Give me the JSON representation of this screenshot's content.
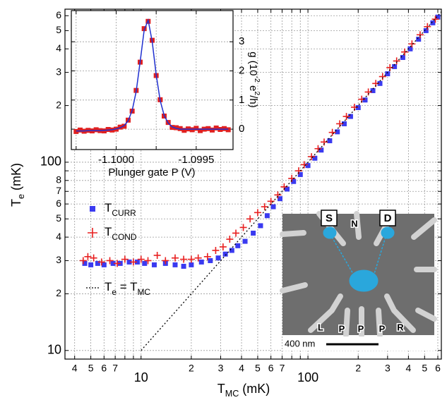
{
  "chart_data": [
    {
      "type": "scatter",
      "xscale": "log",
      "yscale": "log",
      "grid": true,
      "xlabel": [
        {
          "t": "T"
        },
        {
          "t": "MC",
          "s": "sub"
        },
        {
          "t": " (mK)"
        }
      ],
      "ylabel": [
        {
          "t": "T"
        },
        {
          "t": "e",
          "s": "sub"
        },
        {
          "t": " (mK)"
        }
      ],
      "xlim": [
        3.5,
        630
      ],
      "ylim": [
        9,
        650
      ],
      "xticks": [
        4,
        5,
        6,
        7,
        10,
        {
          "value": 20,
          "label": "2"
        },
        {
          "value": 30,
          "label": "3"
        },
        {
          "value": 40,
          "label": "4"
        },
        {
          "value": 50,
          "label": "5"
        },
        {
          "value": 60,
          "label": "6"
        },
        {
          "value": 70,
          "label": "7"
        },
        100,
        {
          "value": 200,
          "label": "2"
        },
        {
          "value": 300,
          "label": "3"
        },
        {
          "value": 400,
          "label": "4"
        },
        {
          "value": 500,
          "label": "5"
        },
        {
          "value": 600,
          "label": "6"
        }
      ],
      "x_unlabelled_ticks": [
        8,
        9,
        80,
        90
      ],
      "yticks": [
        10,
        {
          "value": 20,
          "label": "2"
        },
        {
          "value": 30,
          "label": "3"
        },
        {
          "value": 40,
          "label": "4"
        },
        {
          "value": 50,
          "label": "5"
        },
        {
          "value": 60,
          "label": "6"
        },
        {
          "value": 70,
          "label": "7"
        },
        {
          "value": 80,
          "label": "8"
        },
        100,
        {
          "value": 200,
          "label": "2"
        },
        {
          "value": 300,
          "label": "3"
        },
        {
          "value": 400,
          "label": "4"
        },
        {
          "value": 500,
          "label": "5"
        },
        {
          "value": 600,
          "label": "6"
        }
      ],
      "y_unlabelled_ticks": [
        90
      ],
      "series": [
        {
          "name": [
            {
              "t": "T"
            },
            {
              "t": "CURR",
              "s": "sub"
            }
          ],
          "marker": "square",
          "color": "#3a3af0",
          "x": [
            4.6,
            5,
            5.5,
            6,
            6.8,
            7.5,
            8.5,
            9.5,
            10.5,
            12,
            14,
            16,
            18,
            20,
            23,
            26,
            29,
            32,
            35,
            38,
            42,
            47,
            52,
            57,
            62,
            68,
            75,
            82,
            90,
            100,
            110,
            120,
            135,
            150,
            165,
            180,
            200,
            220,
            245,
            270,
            300,
            330,
            370,
            410,
            460,
            510,
            560,
            600
          ],
          "values": [
            29,
            28.5,
            29,
            28.5,
            29,
            29,
            29.5,
            29.5,
            29,
            28.5,
            29,
            28.5,
            28,
            28.5,
            29.5,
            30,
            31,
            32.5,
            34,
            36,
            38,
            42,
            46,
            52,
            58,
            64,
            72,
            79,
            86,
            96,
            105,
            116,
            130,
            145,
            160,
            175,
            195,
            214,
            240,
            262,
            295,
            322,
            360,
            400,
            450,
            500,
            550,
            590
          ]
        },
        {
          "name": [
            {
              "t": "T"
            },
            {
              "t": "COND",
              "s": "sub"
            }
          ],
          "marker": "plus",
          "color": "#e82020",
          "x": [
            4.5,
            4.8,
            5.2,
            5.8,
            6.5,
            7.2,
            8,
            9,
            10,
            11,
            12.5,
            14,
            16,
            18,
            20,
            22,
            25,
            28,
            31,
            34,
            37,
            41,
            45,
            50,
            55,
            60,
            66,
            72,
            80,
            88,
            95,
            105,
            115,
            125,
            140,
            155,
            170,
            190,
            210,
            230,
            255,
            280,
            310,
            340,
            380,
            420,
            470,
            520,
            580
          ],
          "values": [
            30,
            31.5,
            31,
            29.5,
            30,
            29,
            30.5,
            29.5,
            30.5,
            30,
            32,
            30,
            31,
            30.5,
            30.5,
            31,
            31.5,
            34,
            35.5,
            39,
            42,
            45,
            50,
            54,
            58,
            62,
            67,
            74,
            82,
            90,
            97,
            107,
            118,
            128,
            144,
            160,
            175,
            196,
            216,
            236,
            262,
            285,
            318,
            345,
            385,
            425,
            475,
            525,
            575
          ]
        },
        {
          "name": [
            {
              "t": "T"
            },
            {
              "t": "e",
              "s": "sub"
            },
            {
              "t": " = T"
            },
            {
              "t": "MC",
              "s": "sub"
            }
          ],
          "marker": "dotted-line",
          "color": "#000000",
          "x": [
            10,
            630
          ],
          "values": [
            10,
            630
          ]
        }
      ]
    },
    {
      "type": "line",
      "grid": true,
      "y_axis_side": "right",
      "xlabel": "Plunger gate P (V)",
      "ylabel": [
        {
          "t": "g (10"
        },
        {
          "t": "-2",
          "s": "super"
        },
        {
          "t": " e"
        },
        {
          "t": "2",
          "s": "super"
        },
        {
          "t": "/h)"
        }
      ],
      "xlim": [
        -1.10028,
        -1.09927
      ],
      "ylim": [
        -0.7,
        4.07
      ],
      "xticks": [
        {
          "value": -1.1,
          "label": "-1.1000"
        },
        {
          "value": -1.0995,
          "label": "-1.0995"
        }
      ],
      "x_unlabelled_ticks": [
        -1.10025,
        -1.09975
      ],
      "yticks": [
        0,
        1,
        2,
        3
      ],
      "series": [
        {
          "marker": "square",
          "color": "#e02020",
          "x": [
            -1.10025,
            -1.100225,
            -1.1002,
            -1.100175,
            -1.10015,
            -1.100125,
            -1.1001,
            -1.100075,
            -1.10005,
            -1.100025,
            -1.1,
            -1.099975,
            -1.09995,
            -1.099925,
            -1.0999,
            -1.099875,
            -1.09985,
            -1.099825,
            -1.0998,
            -1.099775,
            -1.09975,
            -1.099725,
            -1.0997,
            -1.099675,
            -1.09965,
            -1.099625,
            -1.0996,
            -1.099575,
            -1.09955,
            -1.099525,
            -1.0995,
            -1.099475,
            -1.09945,
            -1.099425,
            -1.0994,
            -1.099375,
            -1.09935,
            -1.099325,
            -1.0993
          ],
          "values": [
            -0.08,
            -0.03,
            -0.07,
            -0.04,
            -0.06,
            -0.02,
            -0.05,
            -0.06,
            -0.01,
            -0.03,
            0.0,
            0.07,
            0.1,
            0.31,
            0.62,
            1.33,
            2.3,
            3.45,
            3.7,
            3.05,
            1.84,
            1.01,
            0.45,
            0.23,
            0.06,
            0.05,
            0.02,
            -0.04,
            0.01,
            -0.02,
            0.03,
            -0.05,
            0.0,
            0.02,
            -0.03,
            0.04,
            -0.01,
            0.02,
            -0.02
          ]
        },
        {
          "marker": "line",
          "color": "#2030d0",
          "x": [
            -1.10025,
            -1.100225,
            -1.1002,
            -1.100175,
            -1.10015,
            -1.100125,
            -1.1001,
            -1.100075,
            -1.10005,
            -1.100025,
            -1.1,
            -1.099975,
            -1.09995,
            -1.099925,
            -1.0999,
            -1.099875,
            -1.09985,
            -1.099825,
            -1.0998,
            -1.099775,
            -1.09975,
            -1.099725,
            -1.0997,
            -1.099675,
            -1.09965,
            -1.099625,
            -1.0996,
            -1.099575,
            -1.09955,
            -1.099525,
            -1.0995,
            -1.099475,
            -1.09945,
            -1.099425,
            -1.0994,
            -1.099375,
            -1.09935,
            -1.099325,
            -1.0993
          ],
          "values": [
            -0.06,
            -0.06,
            -0.06,
            -0.05,
            -0.05,
            -0.05,
            -0.05,
            -0.04,
            -0.03,
            -0.02,
            0.01,
            0.05,
            0.12,
            0.29,
            0.64,
            1.29,
            2.32,
            3.4,
            3.74,
            3.01,
            1.87,
            0.98,
            0.47,
            0.21,
            0.08,
            0.03,
            0.0,
            0.0,
            0.0,
            0.0,
            0.0,
            0.0,
            0.0,
            0.0,
            0.0,
            0.0,
            0.0,
            0.0,
            0.0
          ]
        }
      ]
    }
  ],
  "sem_image": {
    "labels": [
      "S",
      "N",
      "D",
      "L",
      "P",
      "P",
      "P",
      "R"
    ],
    "scale_bar": "400 nm"
  }
}
